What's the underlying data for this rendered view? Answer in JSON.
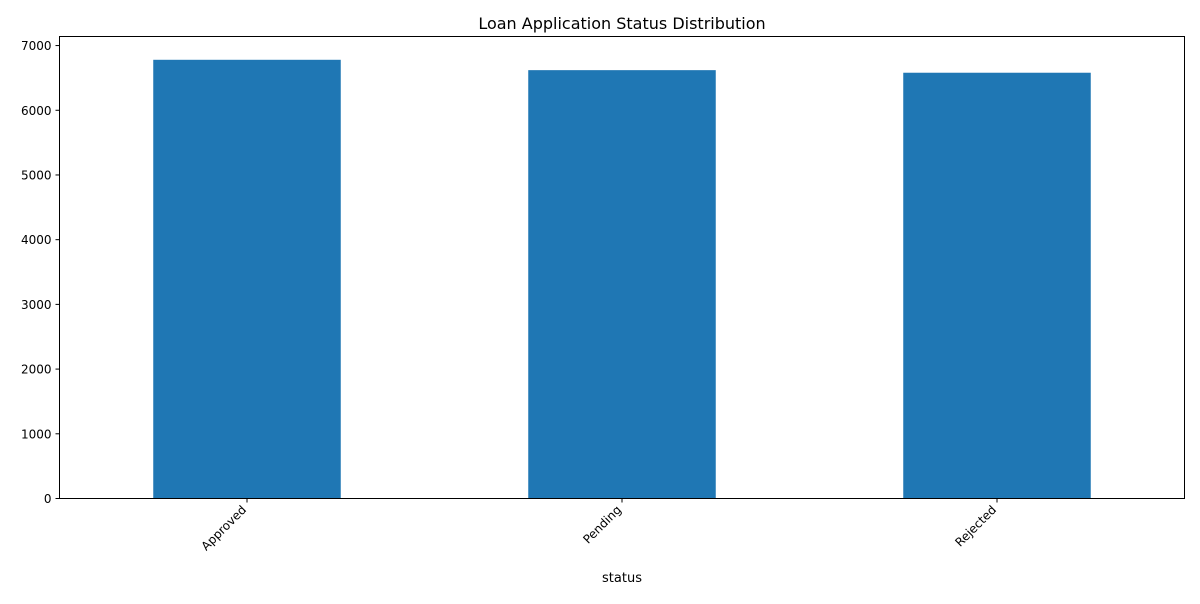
{
  "chart_data": {
    "type": "bar",
    "title": "Loan Application Status Distribution",
    "xlabel": "status",
    "ylabel": "",
    "categories": [
      "Approved",
      "Pending",
      "Rejected"
    ],
    "values": [
      6780,
      6620,
      6580
    ],
    "ylim": [
      0,
      7140
    ],
    "yticks": [
      0,
      1000,
      2000,
      3000,
      4000,
      5000,
      6000,
      7000
    ],
    "grid": false,
    "legend": "none",
    "bar_color": "#1f77b4"
  }
}
